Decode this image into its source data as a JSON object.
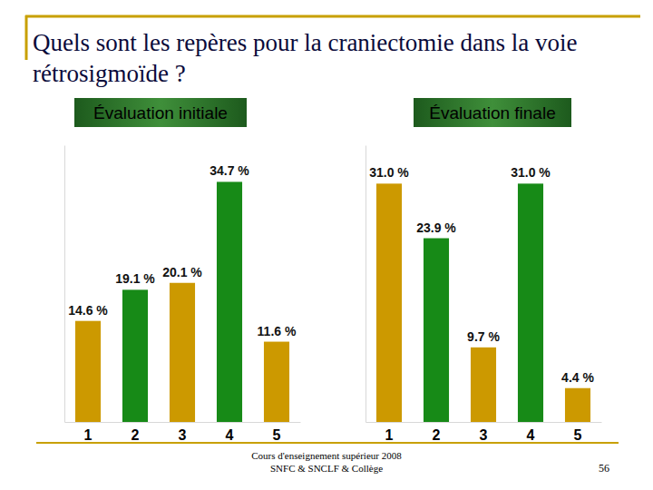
{
  "page": {
    "title": "Quels sont les repères pour la craniectomie dans la voie rétrosigmoïde ?",
    "footer": [
      "Cours d'enseignement supérieur 2008",
      "SNFC & SNCLF & Collège"
    ],
    "page_number": 56
  },
  "chart_data": [
    {
      "type": "bar",
      "title": "Évaluation initiale",
      "categories": [
        "1",
        "2",
        "3",
        "4",
        "5"
      ],
      "values": [
        14.6,
        19.1,
        20.1,
        34.7,
        11.6
      ],
      "value_labels": [
        "14.6 %",
        "19.1 %",
        "20.1 %",
        "34.7 %",
        "11.6 %"
      ],
      "colors": [
        "#cc9900",
        "#178a17",
        "#cc9900",
        "#178a17",
        "#cc9900"
      ],
      "ylim": [
        0,
        40
      ],
      "yticks": [],
      "data_labels": true,
      "tick_labels": "x"
    },
    {
      "type": "bar",
      "title": "Évaluation finale",
      "categories": [
        "1",
        "2",
        "3",
        "4",
        "5"
      ],
      "values": [
        31.0,
        23.9,
        9.7,
        31.0,
        4.4
      ],
      "value_labels": [
        "31.0 %",
        "23.9 %",
        "9.7 %",
        "31.0 %",
        "4.4 %"
      ],
      "colors": [
        "#cc9900",
        "#178a17",
        "#cc9900",
        "#178a17",
        "#cc9900"
      ],
      "ylim": [
        0,
        36
      ],
      "yticks": [],
      "data_labels": true,
      "tick_labels": "x"
    }
  ]
}
